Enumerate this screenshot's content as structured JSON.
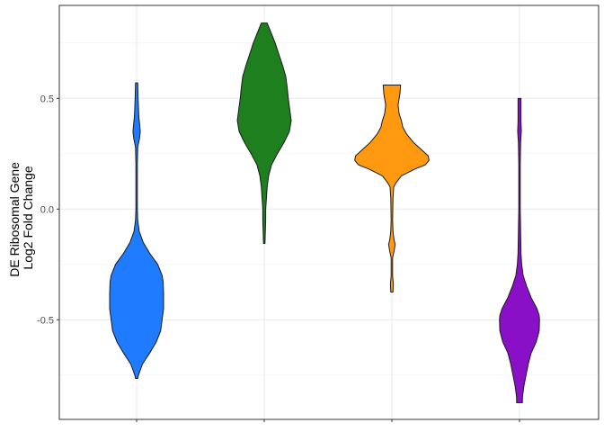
{
  "chart_data": {
    "type": "violin",
    "title": "",
    "xlabel": "",
    "ylabel_lines": [
      "DE Ribosomal Gene",
      "Log2 Fold Change"
    ],
    "ylim": [
      -0.95,
      0.92
    ],
    "yticks": [
      {
        "value": 0.5,
        "label": "0.5"
      },
      {
        "value": 0.0,
        "label": "0.0"
      },
      {
        "value": -0.5,
        "label": "-0.5"
      }
    ],
    "grid": true,
    "legend": "none",
    "series": [
      {
        "color": "#1f7bff",
        "profile": [
          [
            0.57,
            0.003
          ],
          [
            0.5,
            0.004
          ],
          [
            0.42,
            0.006
          ],
          [
            0.37,
            0.009
          ],
          [
            0.35,
            0.01
          ],
          [
            0.32,
            0.008
          ],
          [
            0.28,
            0.003
          ],
          [
            0.2,
            0.002
          ],
          [
            0.0,
            0.002
          ],
          [
            -0.05,
            0.003
          ],
          [
            -0.1,
            0.007
          ],
          [
            -0.15,
            0.018
          ],
          [
            -0.2,
            0.036
          ],
          [
            -0.25,
            0.058
          ],
          [
            -0.3,
            0.07
          ],
          [
            -0.33,
            0.073
          ],
          [
            -0.38,
            0.074
          ],
          [
            -0.45,
            0.074
          ],
          [
            -0.5,
            0.07
          ],
          [
            -0.55,
            0.066
          ],
          [
            -0.6,
            0.054
          ],
          [
            -0.65,
            0.036
          ],
          [
            -0.7,
            0.016
          ],
          [
            -0.75,
            0.005
          ],
          [
            -0.765,
            0.003
          ]
        ]
      },
      {
        "color": "#1e7f1e",
        "profile": [
          [
            0.84,
            0.008
          ],
          [
            0.8,
            0.018
          ],
          [
            0.75,
            0.03
          ],
          [
            0.7,
            0.04
          ],
          [
            0.65,
            0.05
          ],
          [
            0.6,
            0.059
          ],
          [
            0.55,
            0.063
          ],
          [
            0.5,
            0.066
          ],
          [
            0.45,
            0.07
          ],
          [
            0.4,
            0.074
          ],
          [
            0.35,
            0.069
          ],
          [
            0.3,
            0.054
          ],
          [
            0.25,
            0.036
          ],
          [
            0.2,
            0.02
          ],
          [
            0.15,
            0.012
          ],
          [
            0.1,
            0.008
          ],
          [
            0.05,
            0.006
          ],
          [
            0.0,
            0.004
          ],
          [
            -0.05,
            0.004
          ],
          [
            -0.1,
            0.003
          ],
          [
            -0.155,
            0.002
          ]
        ]
      },
      {
        "color": "#ff9910",
        "profile": [
          [
            0.56,
            0.024
          ],
          [
            0.52,
            0.022
          ],
          [
            0.47,
            0.017
          ],
          [
            0.43,
            0.02
          ],
          [
            0.4,
            0.026
          ],
          [
            0.37,
            0.03
          ],
          [
            0.34,
            0.04
          ],
          [
            0.3,
            0.06
          ],
          [
            0.27,
            0.08
          ],
          [
            0.24,
            0.1
          ],
          [
            0.22,
            0.102
          ],
          [
            0.2,
            0.092
          ],
          [
            0.18,
            0.062
          ],
          [
            0.15,
            0.026
          ],
          [
            0.12,
            0.012
          ],
          [
            0.1,
            0.005
          ],
          [
            0.05,
            0.003
          ],
          [
            -0.05,
            0.002
          ],
          [
            -0.1,
            0.003
          ],
          [
            -0.14,
            0.006
          ],
          [
            -0.16,
            0.009
          ],
          [
            -0.19,
            0.006
          ],
          [
            -0.22,
            0.002
          ],
          [
            -0.3,
            0.002
          ],
          [
            -0.34,
            0.004
          ],
          [
            -0.375,
            0.003
          ]
        ]
      },
      {
        "color": "#8a10c8",
        "profile": [
          [
            0.5,
            0.004
          ],
          [
            0.45,
            0.004
          ],
          [
            0.4,
            0.004
          ],
          [
            0.35,
            0.005
          ],
          [
            0.3,
            0.003
          ],
          [
            0.2,
            0.002
          ],
          [
            0.0,
            0.002
          ],
          [
            -0.1,
            0.003
          ],
          [
            -0.2,
            0.004
          ],
          [
            -0.25,
            0.006
          ],
          [
            -0.3,
            0.01
          ],
          [
            -0.35,
            0.02
          ],
          [
            -0.4,
            0.032
          ],
          [
            -0.45,
            0.048
          ],
          [
            -0.48,
            0.054
          ],
          [
            -0.5,
            0.055
          ],
          [
            -0.55,
            0.054
          ],
          [
            -0.6,
            0.046
          ],
          [
            -0.65,
            0.032
          ],
          [
            -0.7,
            0.024
          ],
          [
            -0.75,
            0.018
          ],
          [
            -0.8,
            0.012
          ],
          [
            -0.85,
            0.008
          ],
          [
            -0.875,
            0.008
          ]
        ]
      }
    ]
  }
}
